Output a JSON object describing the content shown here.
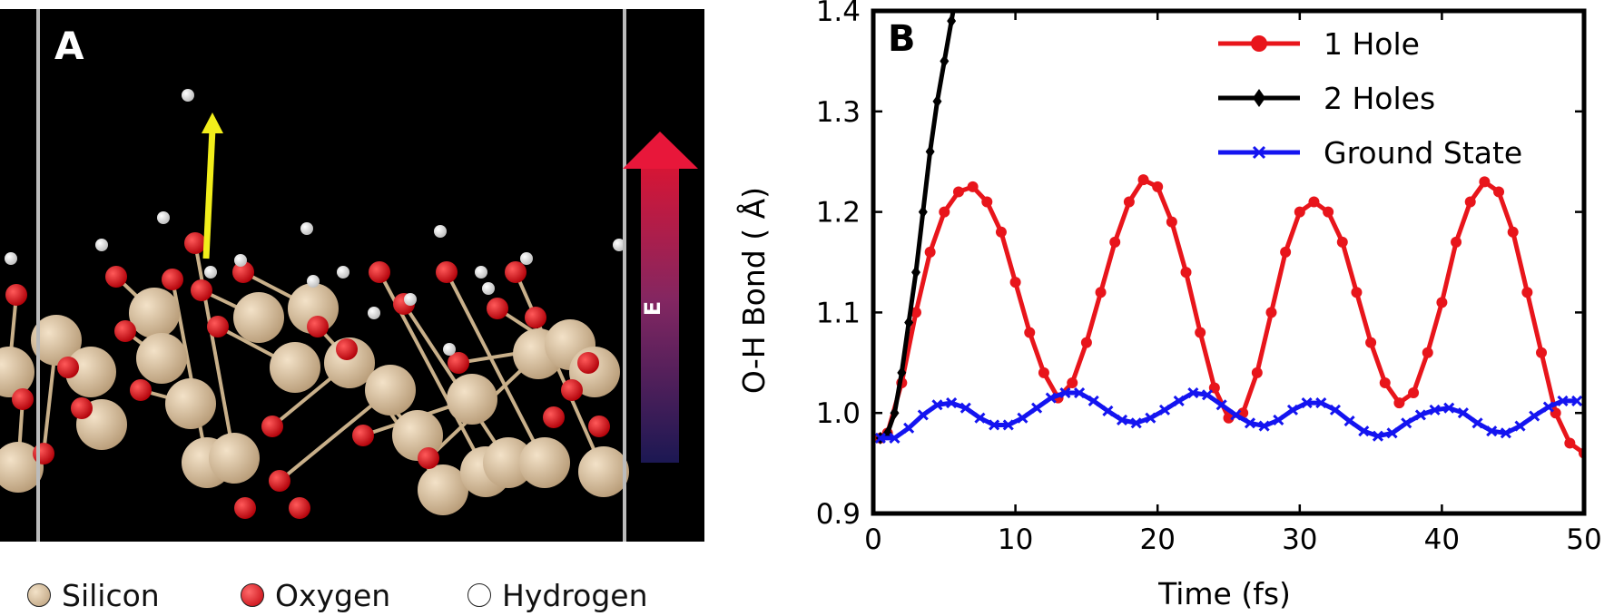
{
  "panel_a": {
    "label": "A",
    "arrow_label": "E",
    "legend": [
      {
        "label": "Silicon",
        "color": "#d9bf9b"
      },
      {
        "label": "Oxygen",
        "color": "#e8151b"
      },
      {
        "label": "Hydrogen",
        "color": "#ffffff"
      }
    ],
    "colors": {
      "background": "#000000",
      "silicon": "#d9bf9b",
      "oxygen": "#e8151b",
      "hydrogen": "#f4f4f4",
      "yellow_arrow": "#f2ee1b",
      "field_top": "#e8173a",
      "field_bottom": "#1e1a5a"
    }
  },
  "panel_b": {
    "label": "B",
    "chart_data": {
      "type": "line",
      "xlabel": "Time (fs)",
      "ylabel": "O-H Bond ( Å)",
      "xlim": [
        0,
        50
      ],
      "ylim": [
        0.9,
        1.4
      ],
      "xticks": [
        "0",
        "10",
        "20",
        "30",
        "40",
        "50"
      ],
      "yticks": [
        "0.9",
        "1.0",
        "1.1",
        "1.2",
        "1.3",
        "1.4"
      ],
      "legend_position": "top-right",
      "series": [
        {
          "name": "1 Hole",
          "color": "#e8151b",
          "marker": "circle",
          "x": [
            0.5,
            1,
            2,
            3,
            4,
            5,
            6,
            7,
            8,
            9,
            10,
            11,
            12,
            13,
            14,
            15,
            16,
            17,
            18,
            19,
            20,
            21,
            22,
            23,
            24,
            25,
            26,
            27,
            28,
            29,
            30,
            31,
            32,
            33,
            34,
            35,
            36,
            37,
            38,
            39,
            40,
            41,
            42,
            43,
            44,
            45,
            46,
            47,
            48,
            49,
            50
          ],
          "y": [
            0.975,
            0.98,
            1.03,
            1.1,
            1.16,
            1.2,
            1.22,
            1.225,
            1.21,
            1.18,
            1.13,
            1.08,
            1.04,
            1.015,
            1.03,
            1.07,
            1.12,
            1.17,
            1.21,
            1.232,
            1.225,
            1.19,
            1.14,
            1.08,
            1.025,
            0.995,
            1.0,
            1.04,
            1.1,
            1.16,
            1.2,
            1.21,
            1.2,
            1.17,
            1.12,
            1.07,
            1.03,
            1.01,
            1.02,
            1.06,
            1.11,
            1.17,
            1.21,
            1.23,
            1.22,
            1.18,
            1.12,
            1.06,
            1.0,
            0.97,
            0.96
          ]
        },
        {
          "name": "2 Holes",
          "color": "#000000",
          "marker": "diamond",
          "x": [
            0.5,
            1,
            1.5,
            2,
            2.5,
            3,
            3.5,
            4,
            4.5,
            5,
            5.5,
            6
          ],
          "y": [
            0.975,
            0.98,
            1.0,
            1.04,
            1.09,
            1.14,
            1.2,
            1.26,
            1.31,
            1.35,
            1.39,
            1.43
          ]
        },
        {
          "name": "Ground State",
          "color": "#1414f0",
          "marker": "x",
          "x": [
            0.5,
            1.5,
            2.5,
            3.5,
            4.5,
            5.5,
            6.5,
            7.5,
            8.5,
            9.5,
            10.5,
            11.5,
            12.5,
            13.5,
            14.5,
            15.5,
            16.5,
            17.5,
            18.5,
            19.5,
            20.5,
            21.5,
            22.5,
            23.5,
            24.5,
            25.5,
            26.5,
            27.5,
            28.5,
            29.5,
            30.5,
            31.5,
            32.5,
            33.5,
            34.5,
            35.5,
            36.5,
            37.5,
            38.5,
            39.5,
            40.5,
            41.5,
            42.5,
            43.5,
            44.5,
            45.5,
            46.5,
            47.5,
            48.5,
            49.5
          ],
          "y": [
            0.975,
            0.975,
            0.985,
            0.998,
            1.008,
            1.01,
            1.005,
            0.995,
            0.988,
            0.988,
            0.995,
            1.005,
            1.015,
            1.02,
            1.02,
            1.012,
            1.002,
            0.993,
            0.99,
            0.995,
            1.003,
            1.012,
            1.02,
            1.018,
            1.008,
            0.998,
            0.99,
            0.987,
            0.993,
            1.003,
            1.01,
            1.01,
            1.003,
            0.992,
            0.982,
            0.977,
            0.98,
            0.99,
            0.998,
            1.003,
            1.005,
            1.0,
            0.99,
            0.982,
            0.98,
            0.987,
            0.997,
            1.006,
            1.012,
            1.012
          ]
        }
      ]
    }
  }
}
